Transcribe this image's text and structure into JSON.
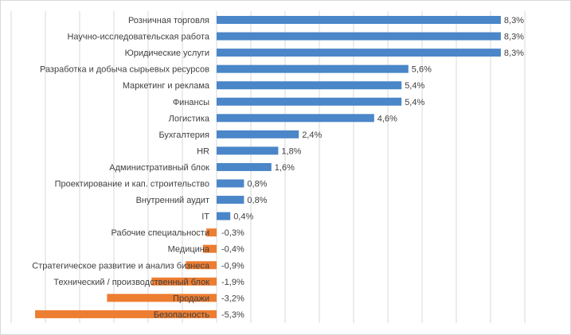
{
  "colors": {
    "positive": "#4a86c8",
    "negative": "#ed7d31",
    "grid": "#d9d9d9",
    "text": "#404040"
  },
  "chart_data": {
    "type": "bar",
    "orientation": "horizontal",
    "title": "",
    "xlabel": "",
    "ylabel": "",
    "xlim": [
      -6,
      9
    ],
    "grid": true,
    "legend": "none",
    "categories": [
      "Розничная торговля",
      "Научно-исследовательская работа",
      "Юридические  услуги",
      "Разработка и добыча сырьевых ресурсов",
      "Маркетинг и реклама",
      "Финансы",
      "Логистика",
      "Бухгалтерия",
      "HR",
      "Административный блок",
      "Проектирование и кап. строительство",
      "Внутренний аудит",
      "IT",
      "Рабочие  специальности",
      "Медицина",
      "Стратегическое развитие и анализ бизнеса",
      "Технический / производственный блок",
      "Продажи",
      "Безопасность"
    ],
    "values": [
      8.3,
      8.3,
      8.3,
      5.6,
      5.4,
      5.4,
      4.6,
      2.4,
      1.8,
      1.6,
      0.8,
      0.8,
      0.4,
      -0.3,
      -0.4,
      -0.9,
      -1.9,
      -3.2,
      -5.3
    ],
    "value_labels": [
      "8,3%",
      "8,3%",
      "8,3%",
      "5,6%",
      "5,4%",
      "5,4%",
      "4,6%",
      "2,4%",
      "1,8%",
      "1,6%",
      "0,8%",
      "0,8%",
      "0,4%",
      "-0,3%",
      "-0,4%",
      "-0,9%",
      "-1,9%",
      "-3,2%",
      "-5,3%"
    ]
  }
}
